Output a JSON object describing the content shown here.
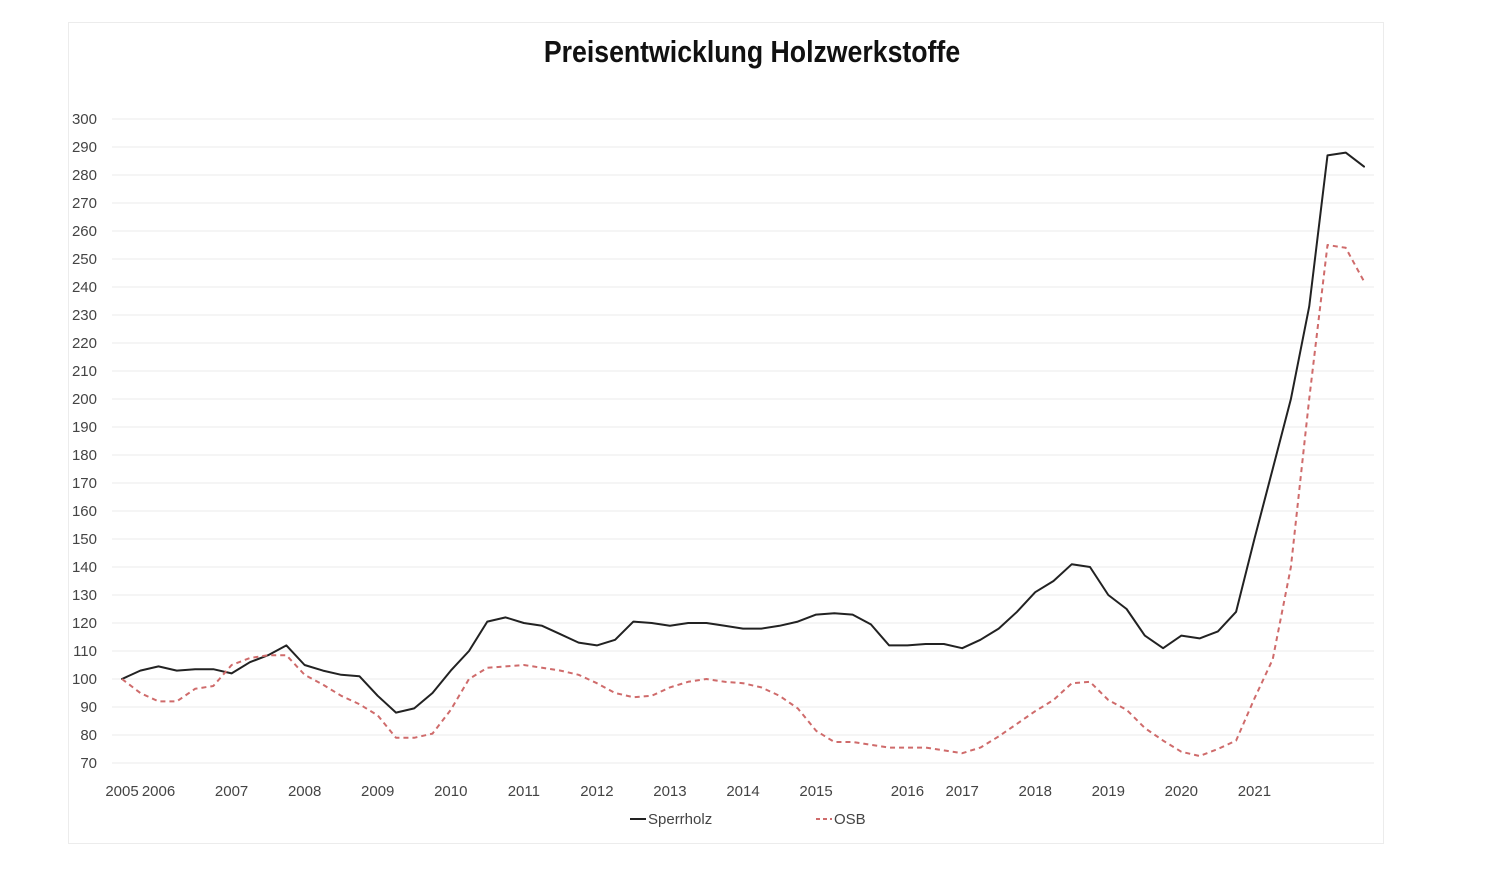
{
  "chart_data": {
    "type": "line",
    "title": "Preisentwicklung Holzwerkstoffe",
    "xlabel": "",
    "ylabel": "",
    "ylim": [
      70,
      300
    ],
    "y_ticks": [
      300,
      290,
      280,
      270,
      260,
      250,
      240,
      230,
      220,
      210,
      200,
      190,
      180,
      170,
      160,
      150,
      140,
      130,
      120,
      110,
      100,
      90,
      80,
      70
    ],
    "x_ticks": [
      "2005",
      "2006",
      "2007",
      "2008",
      "2009",
      "2010",
      "2011",
      "2012",
      "2013",
      "2014",
      "2015",
      "2016",
      "2017",
      "2018",
      "2019",
      "2020",
      "2021"
    ],
    "x_tick_positions": [
      2005.0,
      2005.5,
      2006.5,
      2007.5,
      2008.5,
      2009.5,
      2010.5,
      2011.5,
      2012.5,
      2013.5,
      2014.5,
      2015.75,
      2016.5,
      2017.5,
      2018.5,
      2019.5,
      2020.5
    ],
    "grid": true,
    "legend": "bottom",
    "series": [
      {
        "name": "Sperrholz",
        "color": "#222222",
        "style": "solid",
        "points": [
          [
            2005.0,
            100
          ],
          [
            2005.25,
            103
          ],
          [
            2005.5,
            104.5
          ],
          [
            2005.75,
            103
          ],
          [
            2006.0,
            103.5
          ],
          [
            2006.25,
            103.5
          ],
          [
            2006.5,
            102
          ],
          [
            2006.75,
            106
          ],
          [
            2007.0,
            108.5
          ],
          [
            2007.25,
            112
          ],
          [
            2007.5,
            105
          ],
          [
            2007.75,
            103
          ],
          [
            2008.0,
            101.5
          ],
          [
            2008.25,
            101
          ],
          [
            2008.5,
            94
          ],
          [
            2008.75,
            88
          ],
          [
            2009.0,
            89.5
          ],
          [
            2009.25,
            95
          ],
          [
            2009.5,
            103
          ],
          [
            2009.75,
            110
          ],
          [
            2010.0,
            120.5
          ],
          [
            2010.25,
            122
          ],
          [
            2010.5,
            120
          ],
          [
            2010.75,
            119
          ],
          [
            2011.0,
            116
          ],
          [
            2011.25,
            113
          ],
          [
            2011.5,
            112
          ],
          [
            2011.75,
            114
          ],
          [
            2012.0,
            120.5
          ],
          [
            2012.25,
            120
          ],
          [
            2012.5,
            119
          ],
          [
            2012.75,
            120
          ],
          [
            2013.0,
            120
          ],
          [
            2013.25,
            119
          ],
          [
            2013.5,
            118
          ],
          [
            2013.75,
            118
          ],
          [
            2014.0,
            119
          ],
          [
            2014.25,
            120.5
          ],
          [
            2014.5,
            123
          ],
          [
            2014.75,
            123.5
          ],
          [
            2015.0,
            123
          ],
          [
            2015.25,
            119.5
          ],
          [
            2015.5,
            112
          ],
          [
            2015.75,
            112
          ],
          [
            2016.0,
            112.5
          ],
          [
            2016.25,
            112.5
          ],
          [
            2016.5,
            111
          ],
          [
            2016.75,
            114
          ],
          [
            2017.0,
            118
          ],
          [
            2017.25,
            124
          ],
          [
            2017.5,
            131
          ],
          [
            2017.75,
            135
          ],
          [
            2018.0,
            141
          ],
          [
            2018.25,
            140
          ],
          [
            2018.5,
            130
          ],
          [
            2018.75,
            125
          ],
          [
            2019.0,
            115.5
          ],
          [
            2019.25,
            111
          ],
          [
            2019.5,
            115.5
          ],
          [
            2019.75,
            114.5
          ],
          [
            2020.0,
            117
          ],
          [
            2020.25,
            124
          ],
          [
            2020.5,
            150
          ],
          [
            2020.75,
            175
          ],
          [
            2021.0,
            200
          ],
          [
            2021.25,
            233
          ],
          [
            2021.5,
            287
          ],
          [
            2021.75,
            288
          ],
          [
            2022.0,
            283
          ]
        ]
      },
      {
        "name": "OSB",
        "color": "#cf6b6b",
        "style": "dashed",
        "points": [
          [
            2005.0,
            100
          ],
          [
            2005.25,
            95
          ],
          [
            2005.5,
            92
          ],
          [
            2005.75,
            92
          ],
          [
            2006.0,
            96.5
          ],
          [
            2006.25,
            97.5
          ],
          [
            2006.5,
            105
          ],
          [
            2006.75,
            107.5
          ],
          [
            2007.0,
            108.5
          ],
          [
            2007.25,
            108.5
          ],
          [
            2007.5,
            101.5
          ],
          [
            2007.75,
            98
          ],
          [
            2008.0,
            94
          ],
          [
            2008.25,
            91
          ],
          [
            2008.5,
            87
          ],
          [
            2008.75,
            79
          ],
          [
            2009.0,
            79
          ],
          [
            2009.25,
            80.5
          ],
          [
            2009.5,
            89
          ],
          [
            2009.75,
            100
          ],
          [
            2010.0,
            104
          ],
          [
            2010.25,
            104.5
          ],
          [
            2010.5,
            105
          ],
          [
            2010.75,
            104
          ],
          [
            2011.0,
            103
          ],
          [
            2011.25,
            101.5
          ],
          [
            2011.5,
            98.5
          ],
          [
            2011.75,
            95
          ],
          [
            2012.0,
            93.5
          ],
          [
            2012.25,
            94
          ],
          [
            2012.5,
            97
          ],
          [
            2012.75,
            99
          ],
          [
            2013.0,
            100
          ],
          [
            2013.25,
            99
          ],
          [
            2013.5,
            98.5
          ],
          [
            2013.75,
            97
          ],
          [
            2014.0,
            94
          ],
          [
            2014.25,
            89.5
          ],
          [
            2014.5,
            81.5
          ],
          [
            2014.75,
            77.5
          ],
          [
            2015.0,
            77.5
          ],
          [
            2015.25,
            76.5
          ],
          [
            2015.5,
            75.5
          ],
          [
            2015.75,
            75.5
          ],
          [
            2016.0,
            75.5
          ],
          [
            2016.25,
            74.5
          ],
          [
            2016.5,
            73.5
          ],
          [
            2016.75,
            75.5
          ],
          [
            2017.0,
            79.5
          ],
          [
            2017.25,
            84
          ],
          [
            2017.5,
            88.5
          ],
          [
            2017.75,
            92.5
          ],
          [
            2018.0,
            98.5
          ],
          [
            2018.25,
            99
          ],
          [
            2018.5,
            92.5
          ],
          [
            2018.75,
            89
          ],
          [
            2019.0,
            82.5
          ],
          [
            2019.25,
            78
          ],
          [
            2019.5,
            74
          ],
          [
            2019.75,
            72.5
          ],
          [
            2020.0,
            75
          ],
          [
            2020.25,
            78
          ],
          [
            2020.5,
            93
          ],
          [
            2020.75,
            107
          ],
          [
            2021.0,
            140
          ],
          [
            2021.25,
            200
          ],
          [
            2021.5,
            255
          ],
          [
            2021.75,
            254
          ],
          [
            2022.0,
            242
          ]
        ]
      }
    ]
  }
}
